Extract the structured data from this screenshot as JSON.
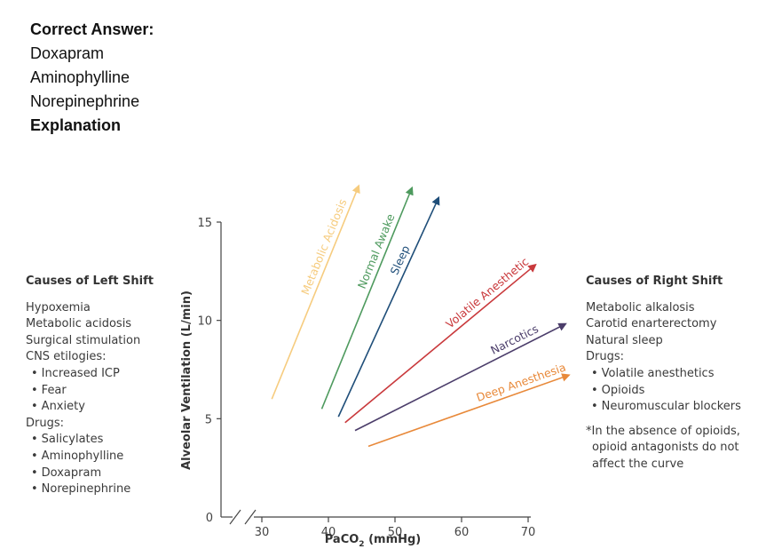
{
  "answer": {
    "heading": "Correct Answer:",
    "items": [
      "Doxapram",
      "Aminophylline",
      "Norepinephrine"
    ],
    "explanation_heading": "Explanation"
  },
  "left_panel": {
    "title": "Causes of Left Shift",
    "items": [
      {
        "text": "Hypoxemia",
        "bullet": false
      },
      {
        "text": "Metabolic acidosis",
        "bullet": false
      },
      {
        "text": "Surgical stimulation",
        "bullet": false
      },
      {
        "text": "CNS etilogies:",
        "bullet": false
      },
      {
        "text": "Increased ICP",
        "bullet": true
      },
      {
        "text": "Fear",
        "bullet": true
      },
      {
        "text": "Anxiety",
        "bullet": true
      },
      {
        "text": "Drugs:",
        "bullet": false
      },
      {
        "text": "Salicylates",
        "bullet": true
      },
      {
        "text": "Aminophylline",
        "bullet": true
      },
      {
        "text": "Doxapram",
        "bullet": true
      },
      {
        "text": "Norepinephrine",
        "bullet": true
      }
    ]
  },
  "right_panel": {
    "title": "Causes of Right Shift",
    "items": [
      {
        "text": "Metabolic alkalosis",
        "bullet": false
      },
      {
        "text": "Carotid enarterectomy",
        "bullet": false
      },
      {
        "text": "Natural sleep",
        "bullet": false
      },
      {
        "text": "Drugs:",
        "bullet": false
      },
      {
        "text": "Volatile anesthetics",
        "bullet": true
      },
      {
        "text": "Opioids",
        "bullet": true
      },
      {
        "text": "Neuromuscular blockers",
        "bullet": true
      }
    ],
    "note_line1": "*In the absence of opioids,",
    "note_line2": "opioid antagonists do not",
    "note_line3": "affect the curve"
  },
  "chart_data": {
    "type": "line",
    "title": "",
    "xlabel": "PaCO",
    "xlabel_sub": "2",
    "xlabel_unit": " (mmHg)",
    "ylabel": "Alveolar Ventilation (L/min)",
    "x_ticks": [
      30,
      40,
      50,
      60,
      70
    ],
    "y_ticks": [
      5,
      10,
      15
    ],
    "origin_label": "0",
    "xlim": [
      30,
      70
    ],
    "ylim": [
      0,
      15
    ],
    "axis_break": true,
    "series": [
      {
        "name": "Metabolic Acidosis",
        "color": "#f6cc7f",
        "x": [
          31.5,
          44.5
        ],
        "y": [
          6.0,
          16.8
        ]
      },
      {
        "name": "Normal Awake",
        "color": "#4e9a5e",
        "x": [
          39.0,
          52.5
        ],
        "y": [
          5.5,
          16.7
        ]
      },
      {
        "name": "Sleep",
        "color": "#1f4e79",
        "x": [
          41.5,
          56.5
        ],
        "y": [
          5.1,
          16.2
        ]
      },
      {
        "name": "Volatile Anesthetic",
        "color": "#c9393c",
        "x": [
          42.5,
          71.0
        ],
        "y": [
          4.8,
          12.8
        ]
      },
      {
        "name": "Narcotics",
        "color": "#4b3d6a",
        "x": [
          44.0,
          75.5
        ],
        "y": [
          4.4,
          9.8
        ]
      },
      {
        "name": "Deep Anesthesia",
        "color": "#e8893a",
        "x": [
          46.0,
          76.0
        ],
        "y": [
          3.6,
          7.2
        ]
      }
    ]
  }
}
